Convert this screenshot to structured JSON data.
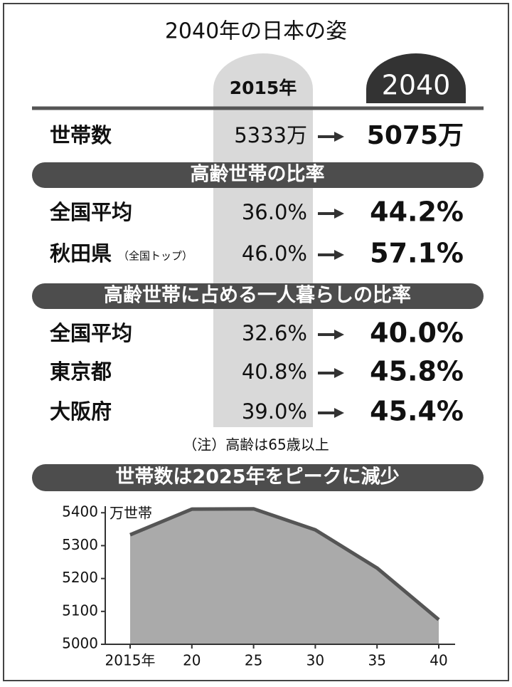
{
  "title": "2040年の日本の姿",
  "table": {
    "columns": [
      "2015年",
      "2040"
    ],
    "rows": [
      {
        "label": "世帯数",
        "values": [
          "5333万",
          "5075万"
        ]
      }
    ],
    "sections": [
      {
        "title": "高齢世帯の比率",
        "rows": [
          {
            "label": "全国平均",
            "values": [
              "36.0%",
              "44.2%"
            ]
          },
          {
            "label": "秋田県",
            "note": "（全国トップ）",
            "values": [
              "46.0%",
              "57.1%"
            ]
          }
        ]
      },
      {
        "title": "高齢世帯に占める一人暮らしの比率",
        "rows": [
          {
            "label": "全国平均",
            "values": [
              "32.6%",
              "40.0%"
            ]
          },
          {
            "label": "東京都",
            "values": [
              "40.8%",
              "45.8%"
            ]
          },
          {
            "label": "大阪府",
            "values": [
              "39.0%",
              "45.4%"
            ]
          }
        ]
      }
    ]
  },
  "note": "（注）高齢は65歳以上",
  "chart_data": {
    "type": "area",
    "title": "世帯数は2025年をピークに減少",
    "y_label": "万世帯",
    "categories": [
      "2015年",
      "20",
      "25",
      "30",
      "35",
      "40"
    ],
    "values": [
      5333,
      5411,
      5412,
      5348,
      5232,
      5075
    ],
    "ylim": [
      5000,
      5420
    ],
    "yticks": [
      5000,
      5100,
      5200,
      5300,
      5400
    ],
    "color": "#aaaaaa",
    "line_color": "#555555"
  }
}
